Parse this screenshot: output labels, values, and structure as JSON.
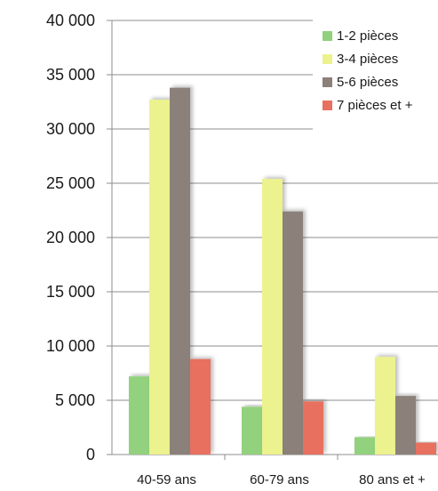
{
  "chart_data": {
    "type": "bar",
    "categories": [
      "40-59 ans",
      "60-79 ans",
      "80 ans et +"
    ],
    "series": [
      {
        "name": "1-2 pièces",
        "color": "#92d17d",
        "values": [
          7200,
          4400,
          1600
        ]
      },
      {
        "name": "3-4 pièces",
        "color": "#ecf28e",
        "values": [
          32700,
          25400,
          9000
        ]
      },
      {
        "name": "5-6 pièces",
        "color": "#8b817a",
        "values": [
          33800,
          22400,
          5400
        ]
      },
      {
        "name": "7 pièces et +",
        "color": "#e8705e",
        "values": [
          8800,
          4900,
          1100
        ]
      }
    ],
    "ylim": [
      0,
      40000
    ],
    "yticks": [
      0,
      5000,
      10000,
      15000,
      20000,
      25000,
      30000,
      35000,
      40000
    ],
    "ytick_labels": [
      "0",
      "5 000",
      "10 000",
      "15 000",
      "20 000",
      "25 000",
      "30 000",
      "35 000",
      "40 000"
    ],
    "grid": true,
    "legend_position": "top-right"
  }
}
